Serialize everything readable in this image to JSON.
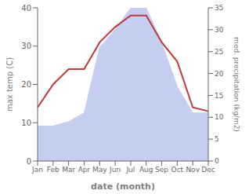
{
  "chart_data": {
    "type": "line",
    "xlabel": "date (month)",
    "ylabel": "max temp (C)",
    "y2label": "med. precipitation (kg/m2)",
    "categories": [
      "Jan",
      "Feb",
      "Mar",
      "Apr",
      "May",
      "Jun",
      "Jul",
      "Aug",
      "Sep",
      "Oct",
      "Nov",
      "Dec"
    ],
    "series": [
      {
        "type": "line",
        "color": "#c0393b",
        "values": [
          14,
          20,
          24,
          24,
          31,
          35,
          38,
          38,
          31,
          26,
          14,
          13
        ]
      },
      {
        "type": "area",
        "color": "#c5cdf0",
        "axis": "y2",
        "values": [
          8,
          8,
          9,
          11,
          26,
          30,
          35,
          35,
          27,
          17,
          11,
          11
        ]
      }
    ],
    "ylim": [
      0,
      40
    ],
    "yticks": [
      0,
      10,
      20,
      30,
      40
    ],
    "y2lim": [
      0,
      35
    ],
    "y2ticks": [
      0,
      5,
      10,
      15,
      20,
      25,
      30,
      35
    ],
    "grid": false
  }
}
